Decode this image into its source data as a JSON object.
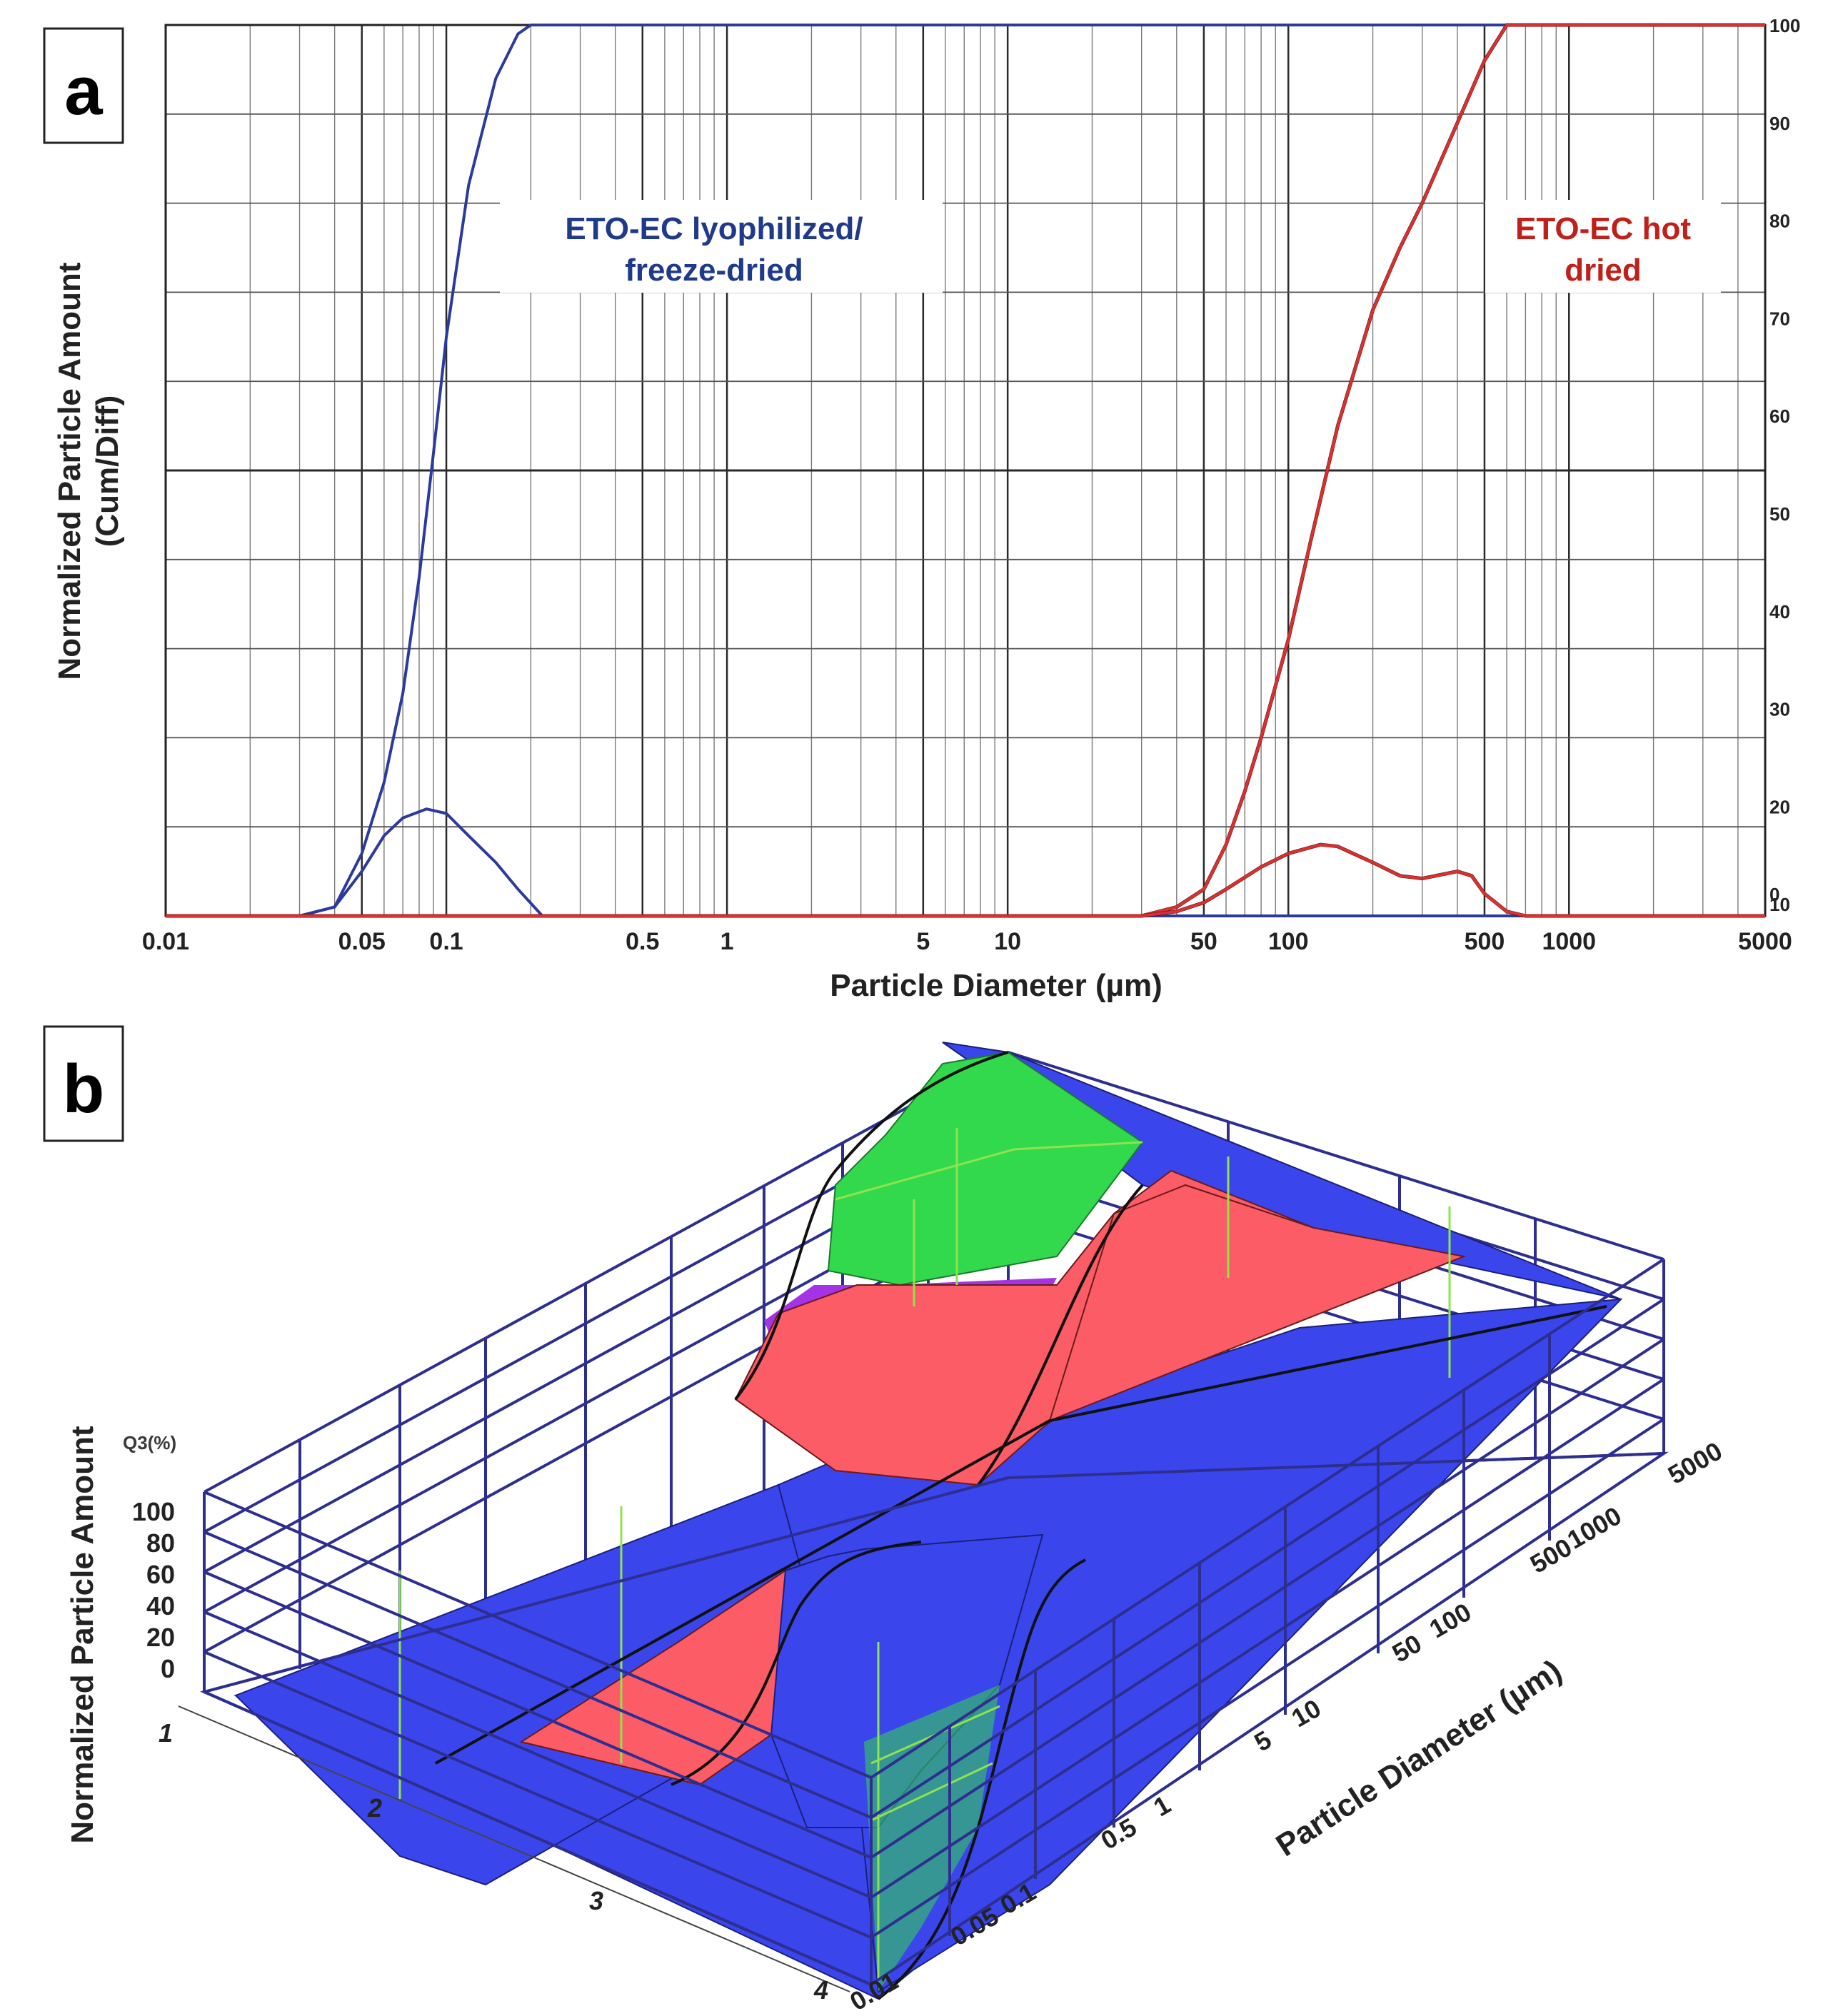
{
  "chart_data": [
    {
      "panel": "a",
      "type": "line",
      "x_scale": "log",
      "xlabel": "Particle Diameter (µm)",
      "ylabel_line1": "Normalized Particle Amount",
      "ylabel_line2": "(Cum/Diff)",
      "xlim": [
        0.01,
        5000
      ],
      "ylim": [
        0,
        100
      ],
      "x_tick_labels": [
        "0.01",
        "0.05",
        "0.1",
        "0.5",
        "1",
        "5",
        "10",
        "50",
        "100",
        "500",
        "1000",
        "5000"
      ],
      "x_tick_values": [
        0.01,
        0.05,
        0.1,
        0.5,
        1,
        5,
        10,
        50,
        100,
        500,
        1000,
        5000
      ],
      "y_tick_labels": [
        "100",
        "90",
        "80",
        "70",
        "60",
        "50",
        "40",
        "30",
        "20",
        "10",
        "0"
      ],
      "y_tick_values": [
        100,
        90,
        80,
        70,
        60,
        50,
        40,
        30,
        20,
        10,
        0
      ],
      "y_axis_side": "right",
      "grid": true,
      "series": [
        {
          "name": "ETO-EC lyophilized/ freeze-dried",
          "kind": "cumulative",
          "color": "#2b3a9c",
          "x": [
            0.01,
            0.03,
            0.04,
            0.05,
            0.06,
            0.07,
            0.08,
            0.09,
            0.1,
            0.12,
            0.15,
            0.18,
            0.2,
            0.25,
            0.3,
            5000
          ],
          "y": [
            0,
            0,
            1,
            7,
            15,
            25,
            38,
            52,
            65,
            82,
            94,
            99,
            100,
            100,
            100,
            100
          ]
        },
        {
          "name": "ETO-EC lyophilized/ freeze-dried",
          "kind": "differential",
          "color": "#2b3a9c",
          "x": [
            0.01,
            0.03,
            0.04,
            0.05,
            0.06,
            0.07,
            0.085,
            0.1,
            0.12,
            0.15,
            0.18,
            0.22,
            5000
          ],
          "y": [
            0,
            0,
            1,
            5,
            9,
            11,
            12,
            11.5,
            9,
            6,
            3,
            0,
            0
          ]
        },
        {
          "name": "ETO-EC hot dried",
          "kind": "cumulative",
          "color": "#d93030",
          "x": [
            0.01,
            30,
            40,
            50,
            60,
            70,
            80,
            100,
            120,
            150,
            200,
            250,
            300,
            400,
            500,
            600,
            700,
            5000
          ],
          "y": [
            0,
            0,
            1,
            3,
            8,
            14,
            20,
            31,
            42,
            55,
            68,
            75,
            80,
            89,
            96,
            100,
            100,
            100
          ]
        },
        {
          "name": "ETO-EC hot dried",
          "kind": "differential",
          "color": "#d93030",
          "x": [
            0.01,
            30,
            40,
            50,
            60,
            80,
            100,
            130,
            150,
            200,
            250,
            300,
            400,
            450,
            500,
            600,
            700,
            5000
          ],
          "y": [
            0,
            0,
            0.5,
            1.5,
            3,
            5.5,
            7,
            8,
            7.8,
            6,
            4.5,
            4.2,
            5,
            4.5,
            2.5,
            0.5,
            0,
            0
          ]
        }
      ],
      "labels": {
        "lyophilized_line1": "ETO-EC lyophilized/",
        "lyophilized_line2": "freeze-dried",
        "hot_dried_line1": "ETO-EC hot",
        "hot_dried_line2": "dried"
      }
    },
    {
      "panel": "b",
      "type": "area",
      "projection": "3d-surface",
      "xlabel": "Particle Diameter (µm)",
      "ylabel": "Normalized Particle Amount",
      "zlabel": "Q3(%)",
      "x_tick_labels": [
        "0.01",
        "0.05",
        "0.1",
        "0.5",
        "1",
        "5",
        "10",
        "50",
        "100",
        "500",
        "1000",
        "5000"
      ],
      "z_tick_labels": [
        "100",
        "80",
        "60",
        "40",
        "20",
        "0"
      ],
      "z_tick_values": [
        100,
        80,
        60,
        40,
        20,
        0
      ],
      "sample_tick_labels": [
        "1",
        "2",
        "3",
        "4"
      ],
      "surfaces": [
        {
          "name": "ETO-EC lyophilized/ freeze-dried",
          "step_at_um": 0.1,
          "q3_low": 0,
          "q3_high": 100
        },
        {
          "name": "ETO-EC hot dried",
          "step_at_um": 150,
          "q3_low": 0,
          "q3_high": 100
        }
      ],
      "colors": {
        "frame": "#2e2e90",
        "surface_blue": "#3a46ec",
        "surface_green": "#33d94d",
        "surface_red": "#fb5c66",
        "surface_purple": "#a433e6",
        "grid_green": "#8fe34e",
        "edge_dark": "#1a1a1a"
      }
    }
  ],
  "panel_labels": {
    "a": "a",
    "b": "b"
  }
}
